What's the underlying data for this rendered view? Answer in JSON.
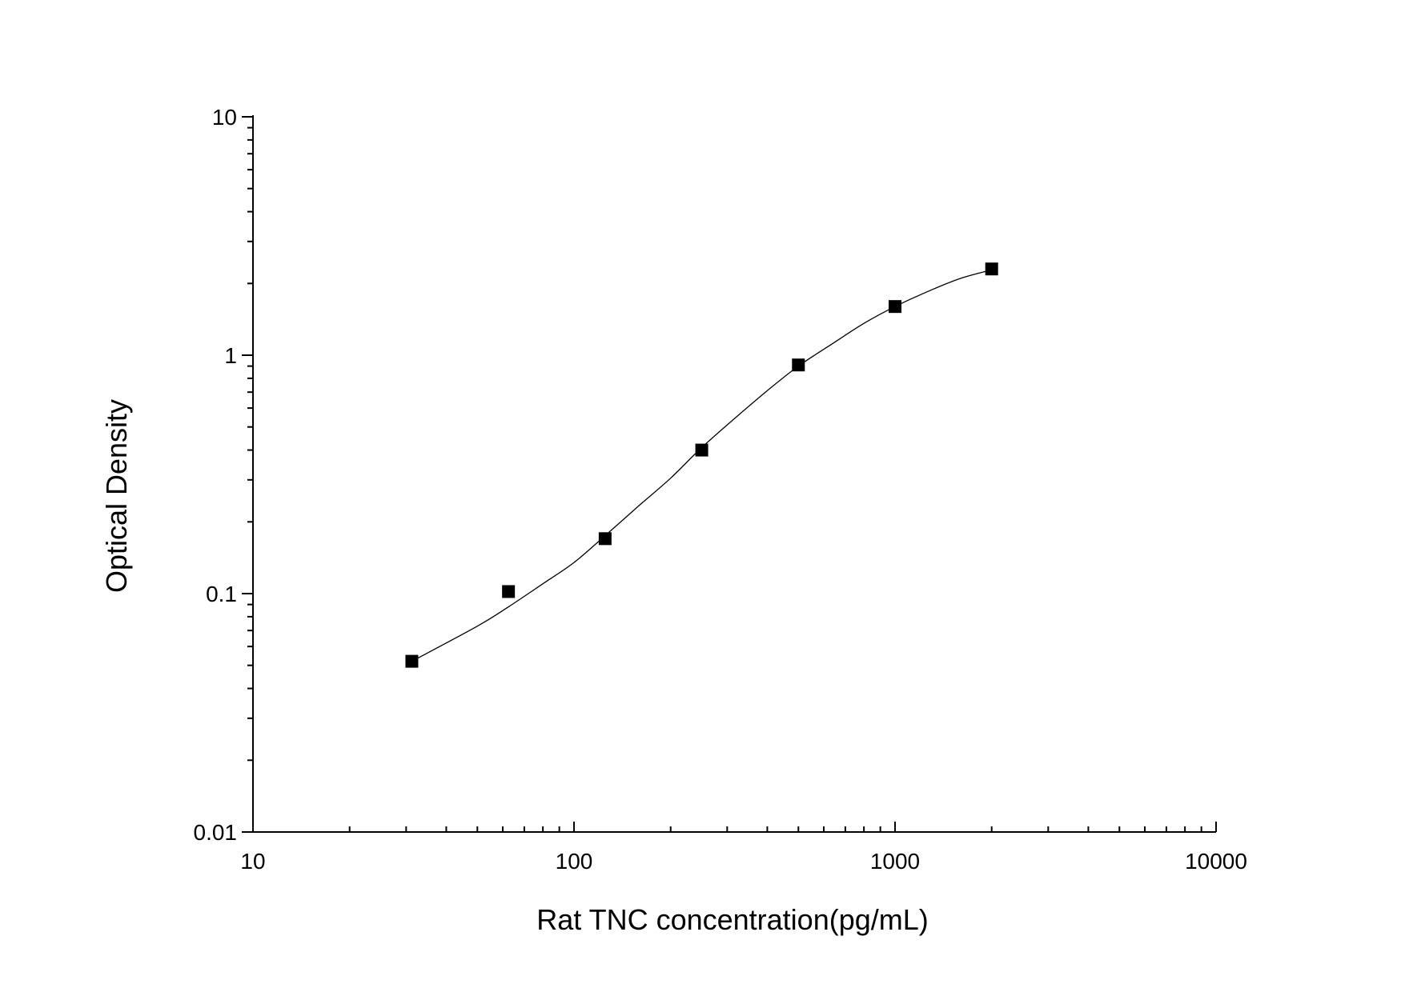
{
  "chart_data": {
    "type": "scatter",
    "xlabel": "Rat TNC concentration(pg/mL)",
    "ylabel": "Optical Density",
    "x_scale": "log",
    "y_scale": "log",
    "xlim": [
      10,
      10000
    ],
    "ylim": [
      0.01,
      10
    ],
    "x_ticks": [
      {
        "value": 10,
        "label": "10"
      },
      {
        "value": 100,
        "label": "100"
      },
      {
        "value": 1000,
        "label": "1000"
      },
      {
        "value": 10000,
        "label": "10000"
      }
    ],
    "y_ticks": [
      {
        "value": 0.01,
        "label": "0.01"
      },
      {
        "value": 0.1,
        "label": "0.1"
      },
      {
        "value": 1,
        "label": "1"
      },
      {
        "value": 10,
        "label": "10"
      }
    ],
    "grid": false,
    "marker": "square",
    "color": "#000000",
    "points": [
      {
        "x": 31.25,
        "y": 0.052
      },
      {
        "x": 62.5,
        "y": 0.102
      },
      {
        "x": 125,
        "y": 0.17
      },
      {
        "x": 250,
        "y": 0.4
      },
      {
        "x": 500,
        "y": 0.91
      },
      {
        "x": 1000,
        "y": 1.6
      },
      {
        "x": 2000,
        "y": 2.3
      }
    ],
    "fit_curve": [
      {
        "x": 31.25,
        "y": 0.052
      },
      {
        "x": 50,
        "y": 0.073
      },
      {
        "x": 62.5,
        "y": 0.088
      },
      {
        "x": 80,
        "y": 0.11
      },
      {
        "x": 100,
        "y": 0.135
      },
      {
        "x": 125,
        "y": 0.175
      },
      {
        "x": 160,
        "y": 0.235
      },
      {
        "x": 200,
        "y": 0.305
      },
      {
        "x": 250,
        "y": 0.41
      },
      {
        "x": 320,
        "y": 0.55
      },
      {
        "x": 400,
        "y": 0.71
      },
      {
        "x": 500,
        "y": 0.9
      },
      {
        "x": 640,
        "y": 1.12
      },
      {
        "x": 800,
        "y": 1.36
      },
      {
        "x": 1000,
        "y": 1.6
      },
      {
        "x": 1300,
        "y": 1.88
      },
      {
        "x": 1600,
        "y": 2.1
      },
      {
        "x": 2000,
        "y": 2.28
      }
    ]
  }
}
